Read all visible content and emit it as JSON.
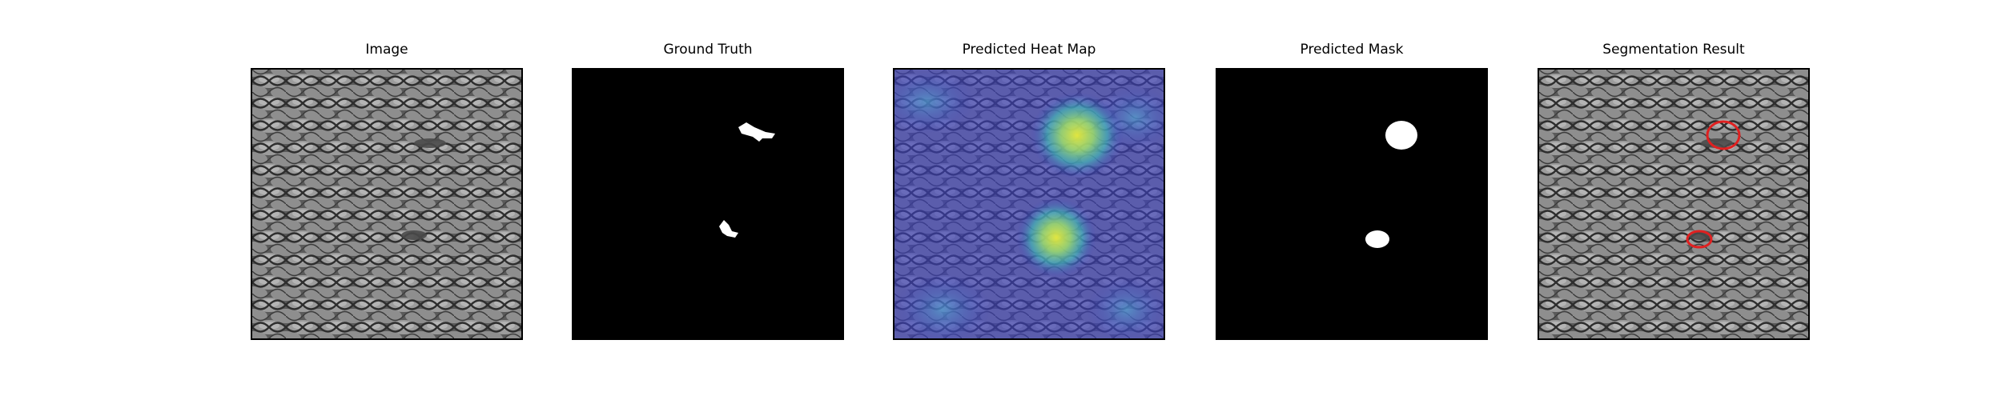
{
  "figure": {
    "panels": [
      {
        "title": "Image",
        "kind": "image"
      },
      {
        "title": "Ground Truth",
        "kind": "ground-truth"
      },
      {
        "title": "Predicted Heat Map",
        "kind": "heat-map"
      },
      {
        "title": "Predicted Mask",
        "kind": "mask"
      },
      {
        "title": "Segmentation Result",
        "kind": "segmentation"
      }
    ],
    "colors": {
      "mesh_dark": "#3a3a3a",
      "mesh_light": "#9a9a9a",
      "mask_white": "#ffffff",
      "heat_cold": "#3b3fbf",
      "heat_hot": "#d8e84a",
      "contour_red": "#e02020"
    }
  }
}
